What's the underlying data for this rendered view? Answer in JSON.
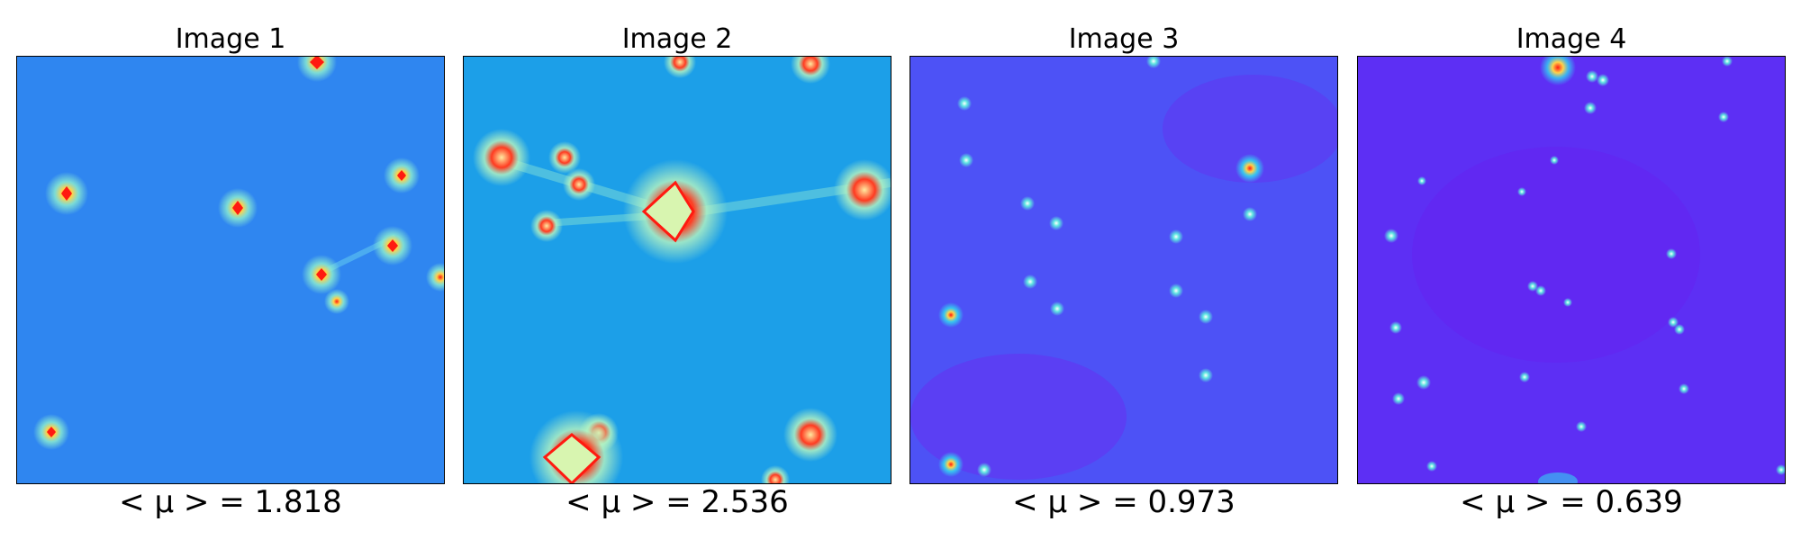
{
  "panels": [
    {
      "title": "Image 1",
      "caption": "< μ >  = 1.818",
      "background": "#2f86f0"
    },
    {
      "title": "Image 2",
      "caption": "< μ >  = 2.536",
      "background": "#1c9fe8"
    },
    {
      "title": "Image 3",
      "caption": "< μ >  = 0.973",
      "background": "#4d52f6"
    },
    {
      "title": "Image 4",
      "caption": "< μ >  = 0.639",
      "background": "#5d2ff4"
    }
  ],
  "colors": {
    "hot": "#ff1a10",
    "warm": "#ffd24a",
    "glow": "#8ef0d0"
  }
}
